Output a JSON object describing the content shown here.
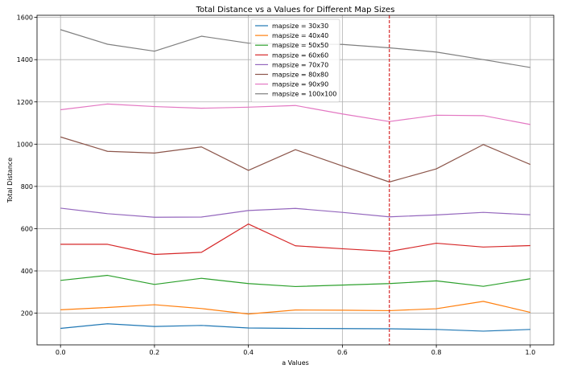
{
  "chart_data": {
    "type": "line",
    "title": "Total Distance vs a Values for Different Map Sizes",
    "xlabel": "a Values",
    "ylabel": "Total Distance",
    "xlim": [
      -0.05,
      1.05
    ],
    "ylim": [
      50,
      1610
    ],
    "xticks": [
      0.0,
      0.2,
      0.4,
      0.6,
      0.8,
      1.0
    ],
    "xtick_labels": [
      "0.0",
      "0.2",
      "0.4",
      "0.6",
      "0.8",
      "1.0"
    ],
    "yticks": [
      200,
      400,
      600,
      800,
      1000,
      1200,
      1400,
      1600
    ],
    "ytick_labels": [
      "200",
      "400",
      "600",
      "800",
      "1000",
      "1200",
      "1400",
      "1600"
    ],
    "grid": true,
    "legend_position": "top-center",
    "vline": {
      "x": 0.7,
      "color": "#d62728",
      "style": "dashed"
    },
    "x": [
      0.0,
      0.1,
      0.2,
      0.3,
      0.4,
      0.5,
      0.6,
      0.7,
      0.8,
      0.9,
      1.0
    ],
    "series": [
      {
        "name": "mapsize = 30x30",
        "color": "#1f77b4",
        "values": [
          128,
          150,
          137,
          142,
          130,
          128,
          127,
          126,
          123,
          115,
          123
        ]
      },
      {
        "name": "mapsize = 40x40",
        "color": "#ff7f0e",
        "values": [
          216,
          227,
          240,
          222,
          196,
          215,
          214,
          212,
          221,
          256,
          204
        ]
      },
      {
        "name": "mapsize = 50x50",
        "color": "#2ca02c",
        "values": [
          355,
          379,
          336,
          365,
          340,
          326,
          333,
          340,
          353,
          327,
          363
        ]
      },
      {
        "name": "mapsize = 60x60",
        "color": "#d62728",
        "values": [
          526,
          526,
          478,
          488,
          622,
          519,
          505,
          492,
          531,
          513,
          520
        ]
      },
      {
        "name": "mapsize = 70x70",
        "color": "#9467bd",
        "values": [
          697,
          671,
          654,
          655,
          686,
          696,
          677,
          656,
          665,
          677,
          666
        ]
      },
      {
        "name": "mapsize = 80x80",
        "color": "#8c564b",
        "values": [
          1034,
          966,
          958,
          987,
          876,
          974,
          897,
          821,
          883,
          998,
          904
        ]
      },
      {
        "name": "mapsize = 90x90",
        "color": "#e377c2",
        "values": [
          1163,
          1190,
          1178,
          1170,
          1175,
          1183,
          1143,
          1107,
          1137,
          1135,
          1093
        ]
      },
      {
        "name": "mapsize = 100x100",
        "color": "#7f7f7f",
        "values": [
          1542,
          1473,
          1440,
          1511,
          1478,
          1474,
          1472,
          1456,
          1436,
          1400,
          1363
        ]
      }
    ]
  }
}
